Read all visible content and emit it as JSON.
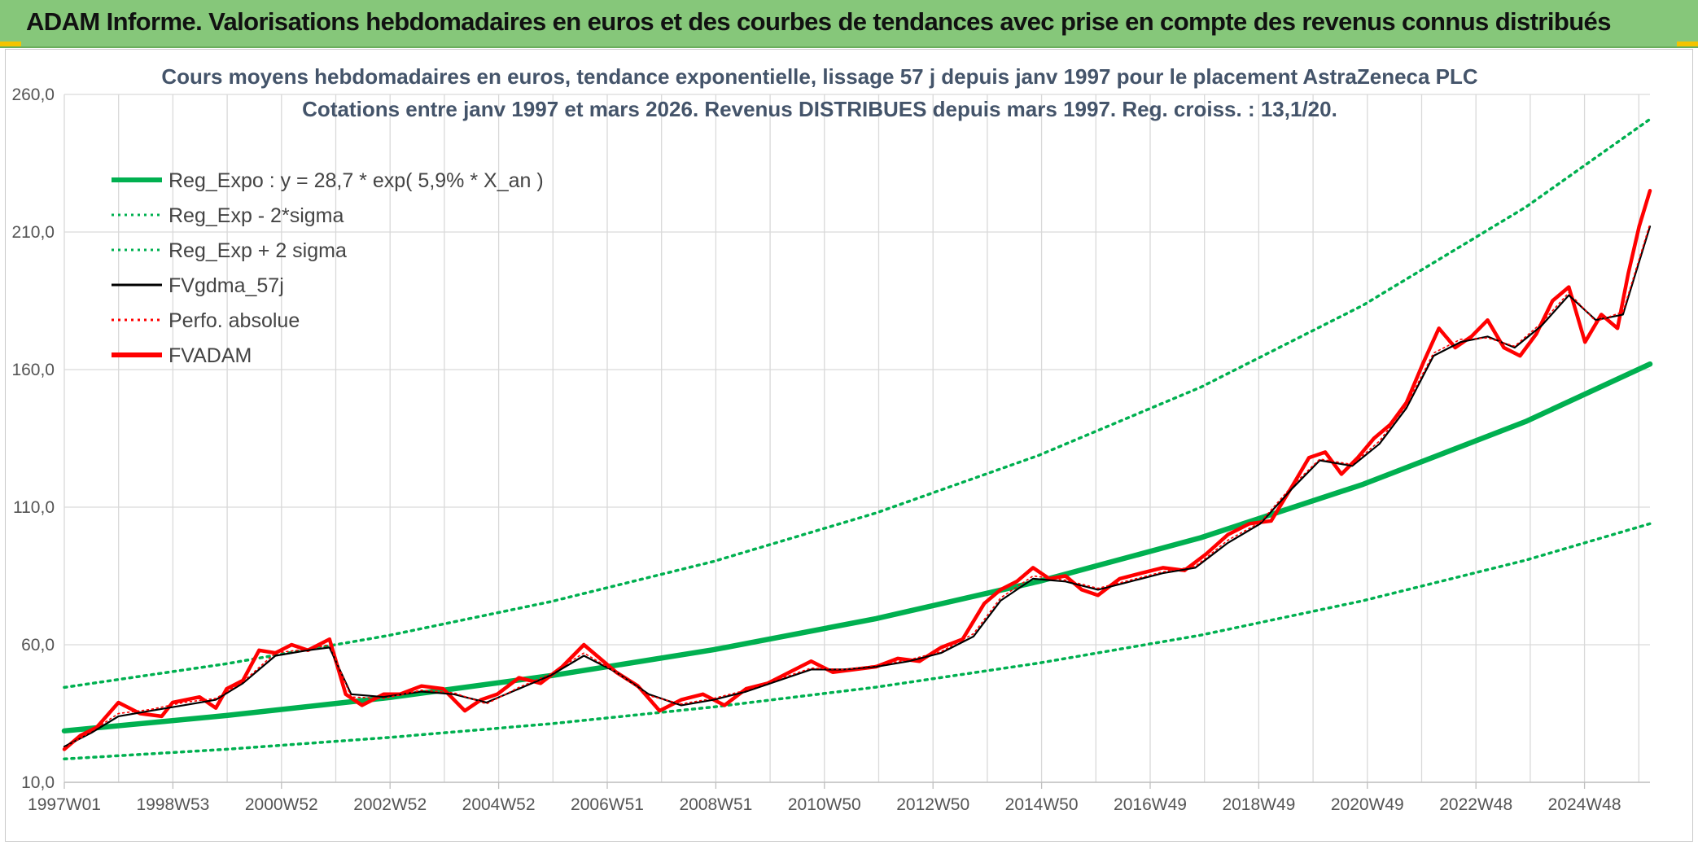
{
  "banner": {
    "title": "ADAM Informe. Valorisations hebdomadaires en euros et des courbes de tendances avec prise en compte des revenus connus distribués"
  },
  "colors": {
    "banner": "#86c77a",
    "reg_expo": "#00b050",
    "sigma_bands": "#00b050",
    "fvgdma": "#000000",
    "perfo": "#ff0000",
    "fvadam": "#ff0000",
    "title": "#44546a",
    "grid": "#d9d9d9"
  },
  "chart_data": {
    "type": "line",
    "title_lines": [
      "Cours moyens hebdomadaires en euros, tendance exponentielle, lissage 57 j depuis janv 1997 pour le placement AstraZeneca PLC",
      "Cotations entre janv 1997 et mars 2026. Revenus DISTRIBUES depuis mars 1997. Reg. croiss. : 13,1/20."
    ],
    "y_ticks": [
      "10,0",
      "60,0",
      "110,0",
      "160,0",
      "210,0",
      "260,0"
    ],
    "ylim": [
      10,
      260
    ],
    "x_ticks": [
      "1997W01",
      "1998W53",
      "2000W52",
      "2002W52",
      "2004W52",
      "2006W51",
      "2008W51",
      "2010W50",
      "2012W50",
      "2014W50",
      "2016W49",
      "2018W49",
      "2020W49",
      "2022W48",
      "2024W48"
    ],
    "xlim": [
      1997.0,
      2026.3
    ],
    "grid": true,
    "legend_position": "top-left",
    "legend": [
      {
        "label": "Reg_Expo : y = 28,7 * exp( 5,9% *  X_an )",
        "style": "solid-thick",
        "color": "#00b050"
      },
      {
        "label": "Reg_Exp - 2*sigma",
        "style": "dotted",
        "color": "#00b050"
      },
      {
        "label": "Reg_Exp + 2 sigma",
        "style": "dotted",
        "color": "#00b050"
      },
      {
        "label": "FVgdma_57j",
        "style": "solid-thin",
        "color": "#000000"
      },
      {
        "label": "Perfo. absolue",
        "style": "dotted",
        "color": "#ff0000"
      },
      {
        "label": "FVADAM",
        "style": "solid-thick",
        "color": "#ff0000"
      }
    ],
    "series": [
      {
        "name": "Reg_Expo : y = 28,7 * exp( 5,9% *  X_an )",
        "x": [
          1997.0,
          2000.0,
          2003.0,
          2006.0,
          2009.0,
          2012.0,
          2015.0,
          2018.0,
          2021.0,
          2024.0,
          2026.3
        ],
        "values": [
          28.7,
          34.3,
          40.8,
          48.8,
          58.2,
          69.5,
          83.0,
          98.9,
          118.3,
          141.1,
          162.0
        ]
      },
      {
        "name": "Reg_Exp - 2*sigma",
        "x": [
          1997.0,
          2000.0,
          2003.0,
          2006.0,
          2009.0,
          2012.0,
          2015.0,
          2018.0,
          2021.0,
          2024.0,
          2026.3
        ],
        "values": [
          18.5,
          22.0,
          26.3,
          31.3,
          37.4,
          44.6,
          53.3,
          63.5,
          76.0,
          90.7,
          104.0
        ]
      },
      {
        "name": "Reg_Exp + 2 sigma",
        "x": [
          1997.0,
          2000.0,
          2003.0,
          2006.0,
          2009.0,
          2012.0,
          2015.0,
          2018.0,
          2021.0,
          2024.0,
          2026.3
        ],
        "values": [
          44.5,
          53.1,
          63.4,
          75.7,
          90.3,
          107.9,
          128.8,
          153.6,
          183.4,
          219.0,
          251.0
        ]
      },
      {
        "name": "FVADAM",
        "x": [
          1997.0,
          1997.3,
          1997.6,
          1998.0,
          1998.4,
          1998.8,
          1999.0,
          1999.5,
          1999.8,
          2000.0,
          2000.3,
          2000.6,
          2000.9,
          2001.2,
          2001.5,
          2001.9,
          2002.2,
          2002.5,
          2002.9,
          2003.2,
          2003.6,
          2004.0,
          2004.4,
          2004.7,
          2005.0,
          2005.4,
          2005.8,
          2006.2,
          2006.6,
          2006.9,
          2007.2,
          2007.6,
          2008.0,
          2008.4,
          2008.8,
          2009.2,
          2009.6,
          2010.0,
          2010.4,
          2010.8,
          2011.2,
          2011.6,
          2012.0,
          2012.4,
          2012.8,
          2013.2,
          2013.6,
          2014.0,
          2014.3,
          2014.6,
          2014.9,
          2015.2,
          2015.5,
          2015.8,
          2016.1,
          2016.5,
          2016.9,
          2017.3,
          2017.7,
          2018.1,
          2018.5,
          2018.9,
          2019.3,
          2019.7,
          2020.0,
          2020.3,
          2020.6,
          2020.9,
          2021.2,
          2021.5,
          2021.8,
          2022.1,
          2022.4,
          2022.7,
          2023.0,
          2023.3,
          2023.6,
          2023.9,
          2024.2,
          2024.5,
          2024.8,
          2025.1,
          2025.4,
          2025.7,
          2025.9,
          2026.1,
          2026.3
        ],
        "values": [
          22.0,
          27.0,
          30.0,
          39.0,
          35.0,
          34.0,
          39.0,
          41.0,
          37.0,
          44.0,
          47.0,
          58.0,
          57.0,
          60.0,
          58.0,
          62.0,
          42.0,
          38.0,
          42.0,
          42.0,
          45.0,
          44.0,
          36.0,
          40.0,
          42.0,
          48.0,
          46.0,
          52.0,
          60.0,
          55.0,
          50.0,
          45.0,
          36.0,
          40.0,
          42.0,
          38.0,
          44.0,
          46.0,
          50.0,
          54.0,
          50.0,
          51.0,
          52.0,
          55.0,
          54.0,
          59.0,
          62.0,
          75.0,
          80.0,
          83.0,
          88.0,
          84.0,
          85.0,
          80.0,
          78.0,
          84.0,
          86.0,
          88.0,
          87.0,
          93.0,
          100.0,
          104.0,
          105.0,
          118.0,
          128.0,
          130.0,
          122.0,
          128.0,
          135.0,
          140.0,
          148.0,
          162.0,
          175.0,
          168.0,
          172.0,
          178.0,
          168.0,
          165.0,
          173.0,
          185.0,
          190.0,
          170.0,
          180.0,
          175.0,
          195.0,
          212.0,
          225.0
        ]
      },
      {
        "name": "FVgdma_57j",
        "x": [
          1997.0,
          1997.5,
          1998.0,
          1998.6,
          1999.2,
          1999.8,
          2000.3,
          2000.9,
          2001.5,
          2001.9,
          2002.3,
          2002.9,
          2003.6,
          2004.2,
          2004.8,
          2005.4,
          2006.0,
          2006.6,
          2007.2,
          2007.8,
          2008.4,
          2009.0,
          2009.6,
          2010.2,
          2010.8,
          2011.4,
          2012.0,
          2012.6,
          2013.2,
          2013.8,
          2014.3,
          2014.9,
          2015.5,
          2016.1,
          2016.7,
          2017.3,
          2017.9,
          2018.5,
          2019.1,
          2019.7,
          2020.2,
          2020.8,
          2021.3,
          2021.8,
          2022.3,
          2022.8,
          2023.3,
          2023.8,
          2024.3,
          2024.8,
          2025.3,
          2025.8,
          2026.3
        ],
        "values": [
          23.0,
          28.0,
          34.0,
          36.0,
          38.0,
          40.0,
          46.0,
          56.0,
          58.0,
          59.0,
          42.0,
          41.0,
          43.0,
          42.0,
          39.0,
          44.0,
          49.0,
          56.0,
          50.0,
          42.0,
          38.0,
          40.0,
          43.0,
          47.0,
          51.0,
          51.0,
          52.0,
          54.0,
          57.0,
          63.0,
          76.0,
          84.0,
          83.0,
          80.0,
          83.0,
          86.0,
          88.0,
          97.0,
          104.0,
          117.0,
          127.0,
          125.0,
          133.0,
          146.0,
          165.0,
          170.0,
          172.0,
          168.0,
          176.0,
          187.0,
          178.0,
          180.0,
          212.0
        ]
      },
      {
        "name": "Perfo. absolue",
        "x": [
          1997.0,
          1997.5,
          1998.0,
          1998.6,
          1999.2,
          1999.8,
          2000.3,
          2000.9,
          2001.5,
          2001.9,
          2002.3,
          2002.9,
          2003.6,
          2004.2,
          2004.8,
          2005.4,
          2006.0,
          2006.6,
          2007.2,
          2007.8,
          2008.4,
          2009.0,
          2009.6,
          2010.2,
          2010.8,
          2011.4,
          2012.0,
          2012.6,
          2013.2,
          2013.8,
          2014.3,
          2014.9,
          2015.5,
          2016.1,
          2016.7,
          2017.3,
          2017.9,
          2018.5,
          2019.1,
          2019.7,
          2020.2,
          2020.8,
          2021.3,
          2021.8,
          2022.3,
          2022.8,
          2023.3,
          2023.8,
          2024.3,
          2024.8,
          2025.3,
          2025.8,
          2026.3
        ],
        "values": [
          22.5,
          28.5,
          35.0,
          36.5,
          39.0,
          40.5,
          46.5,
          57.0,
          58.5,
          60.0,
          41.0,
          40.5,
          43.5,
          42.5,
          38.5,
          44.5,
          49.5,
          57.0,
          50.0,
          41.5,
          38.5,
          40.5,
          43.5,
          47.5,
          51.5,
          51.0,
          52.5,
          54.5,
          57.5,
          64.0,
          77.0,
          85.0,
          83.5,
          80.5,
          83.5,
          86.5,
          88.5,
          98.0,
          104.5,
          118.0,
          127.5,
          125.5,
          134.0,
          147.0,
          166.0,
          171.0,
          171.5,
          168.5,
          177.0,
          188.0,
          177.5,
          181.0,
          213.0
        ]
      }
    ]
  }
}
